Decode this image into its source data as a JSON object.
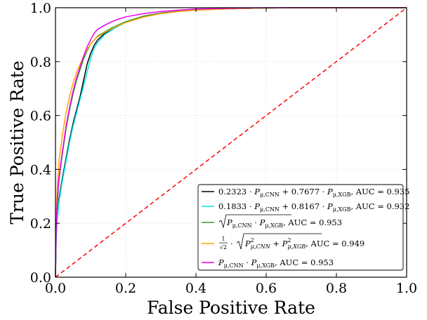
{
  "chart_data": {
    "type": "line",
    "xlabel": "False Positive Rate",
    "ylabel": "True Positive Rate",
    "xlim": [
      0.0,
      1.0
    ],
    "ylim": [
      0.0,
      1.0
    ],
    "xticks": [
      "0.0",
      "0.2",
      "0.4",
      "0.6",
      "0.8",
      "1.0"
    ],
    "yticks": [
      "0.0",
      "0.2",
      "0.4",
      "0.6",
      "0.8",
      "1.0"
    ],
    "grid": true,
    "legend_position": "lower-right",
    "series": [
      {
        "name": "0.2323 · P_μ,CNN + 0.7677 · P_μ,XGB, AUC = 0.935",
        "color": "#000000",
        "x": [
          0,
          0.002,
          0.005,
          0.01,
          0.02,
          0.03,
          0.04,
          0.05,
          0.06,
          0.07,
          0.08,
          0.09,
          0.1,
          0.11,
          0.12,
          0.14,
          0.16,
          0.18,
          0.2,
          0.25,
          0.3,
          0.35,
          0.4,
          0.5,
          0.6,
          0.7,
          0.8,
          0.9,
          1.0
        ],
        "y": [
          0,
          0.15,
          0.22,
          0.29,
          0.37,
          0.44,
          0.51,
          0.57,
          0.62,
          0.67,
          0.73,
          0.79,
          0.83,
          0.86,
          0.88,
          0.905,
          0.92,
          0.935,
          0.948,
          0.968,
          0.98,
          0.987,
          0.992,
          0.996,
          0.999,
          1.0,
          1.0,
          1.0,
          1.0
        ]
      },
      {
        "name": "0.1833 · P_μ,CNN + 0.8167 · P_μ,XGB, AUC = 0.932",
        "color": "#00e5ee",
        "x": [
          0,
          0.002,
          0.005,
          0.01,
          0.02,
          0.03,
          0.04,
          0.05,
          0.06,
          0.07,
          0.08,
          0.09,
          0.1,
          0.11,
          0.12,
          0.14,
          0.16,
          0.18,
          0.2,
          0.25,
          0.3,
          0.35,
          0.4,
          0.5,
          0.6,
          0.7,
          0.8,
          0.9,
          1.0
        ],
        "y": [
          0,
          0.14,
          0.21,
          0.28,
          0.36,
          0.43,
          0.5,
          0.56,
          0.61,
          0.66,
          0.71,
          0.76,
          0.81,
          0.85,
          0.87,
          0.9,
          0.917,
          0.932,
          0.945,
          0.966,
          0.979,
          0.986,
          0.991,
          0.996,
          0.999,
          1.0,
          1.0,
          1.0,
          1.0
        ]
      },
      {
        "name": "√(P_μ,CNN · P_μ,XGB), AUC = 0.953",
        "color": "#2ca02c",
        "x": [
          0,
          0.002,
          0.005,
          0.01,
          0.02,
          0.03,
          0.04,
          0.05,
          0.06,
          0.07,
          0.08,
          0.09,
          0.1,
          0.11,
          0.12,
          0.14,
          0.16,
          0.18,
          0.2,
          0.25,
          0.3,
          0.35,
          0.4,
          0.5,
          0.6,
          0.7,
          0.8,
          0.9,
          1.0
        ],
        "y": [
          0,
          0.18,
          0.27,
          0.36,
          0.46,
          0.55,
          0.62,
          0.68,
          0.73,
          0.77,
          0.81,
          0.84,
          0.865,
          0.88,
          0.895,
          0.91,
          0.925,
          0.937,
          0.948,
          0.967,
          0.979,
          0.987,
          0.992,
          0.996,
          0.999,
          1.0,
          1.0,
          1.0,
          1.0
        ]
      },
      {
        "name": "1/√2 · √(P²_μ,CNN + P²_μ,XGB), AUC = 0.949",
        "color": "#ffa500",
        "x": [
          0,
          0.002,
          0.005,
          0.01,
          0.02,
          0.03,
          0.04,
          0.05,
          0.06,
          0.07,
          0.08,
          0.09,
          0.1,
          0.11,
          0.12,
          0.14,
          0.16,
          0.18,
          0.2,
          0.25,
          0.3,
          0.35,
          0.4,
          0.5,
          0.6,
          0.7,
          0.8,
          0.9,
          1.0
        ],
        "y": [
          0,
          0.22,
          0.33,
          0.43,
          0.53,
          0.61,
          0.67,
          0.72,
          0.76,
          0.79,
          0.82,
          0.845,
          0.865,
          0.88,
          0.892,
          0.908,
          0.922,
          0.934,
          0.945,
          0.965,
          0.978,
          0.986,
          0.991,
          0.996,
          0.999,
          1.0,
          1.0,
          1.0,
          1.0
        ]
      },
      {
        "name": "P_μ,CNN · P_μ,XGB, AUC = 0.953",
        "color": "#ee00ee",
        "x": [
          0,
          0.002,
          0.005,
          0.01,
          0.02,
          0.03,
          0.04,
          0.05,
          0.06,
          0.07,
          0.08,
          0.09,
          0.1,
          0.11,
          0.12,
          0.14,
          0.16,
          0.18,
          0.2,
          0.25,
          0.3,
          0.35,
          0.4,
          0.5,
          0.6,
          0.7,
          0.8,
          0.9,
          1.0
        ],
        "y": [
          0,
          0.19,
          0.28,
          0.37,
          0.47,
          0.56,
          0.63,
          0.69,
          0.74,
          0.78,
          0.82,
          0.855,
          0.88,
          0.905,
          0.92,
          0.935,
          0.948,
          0.958,
          0.966,
          0.978,
          0.986,
          0.991,
          0.995,
          0.998,
          1.0,
          1.0,
          1.0,
          1.0,
          1.0
        ]
      }
    ],
    "reference_line": {
      "color": "#ff0000",
      "x": [
        0,
        1
      ],
      "y": [
        0,
        1
      ]
    }
  }
}
